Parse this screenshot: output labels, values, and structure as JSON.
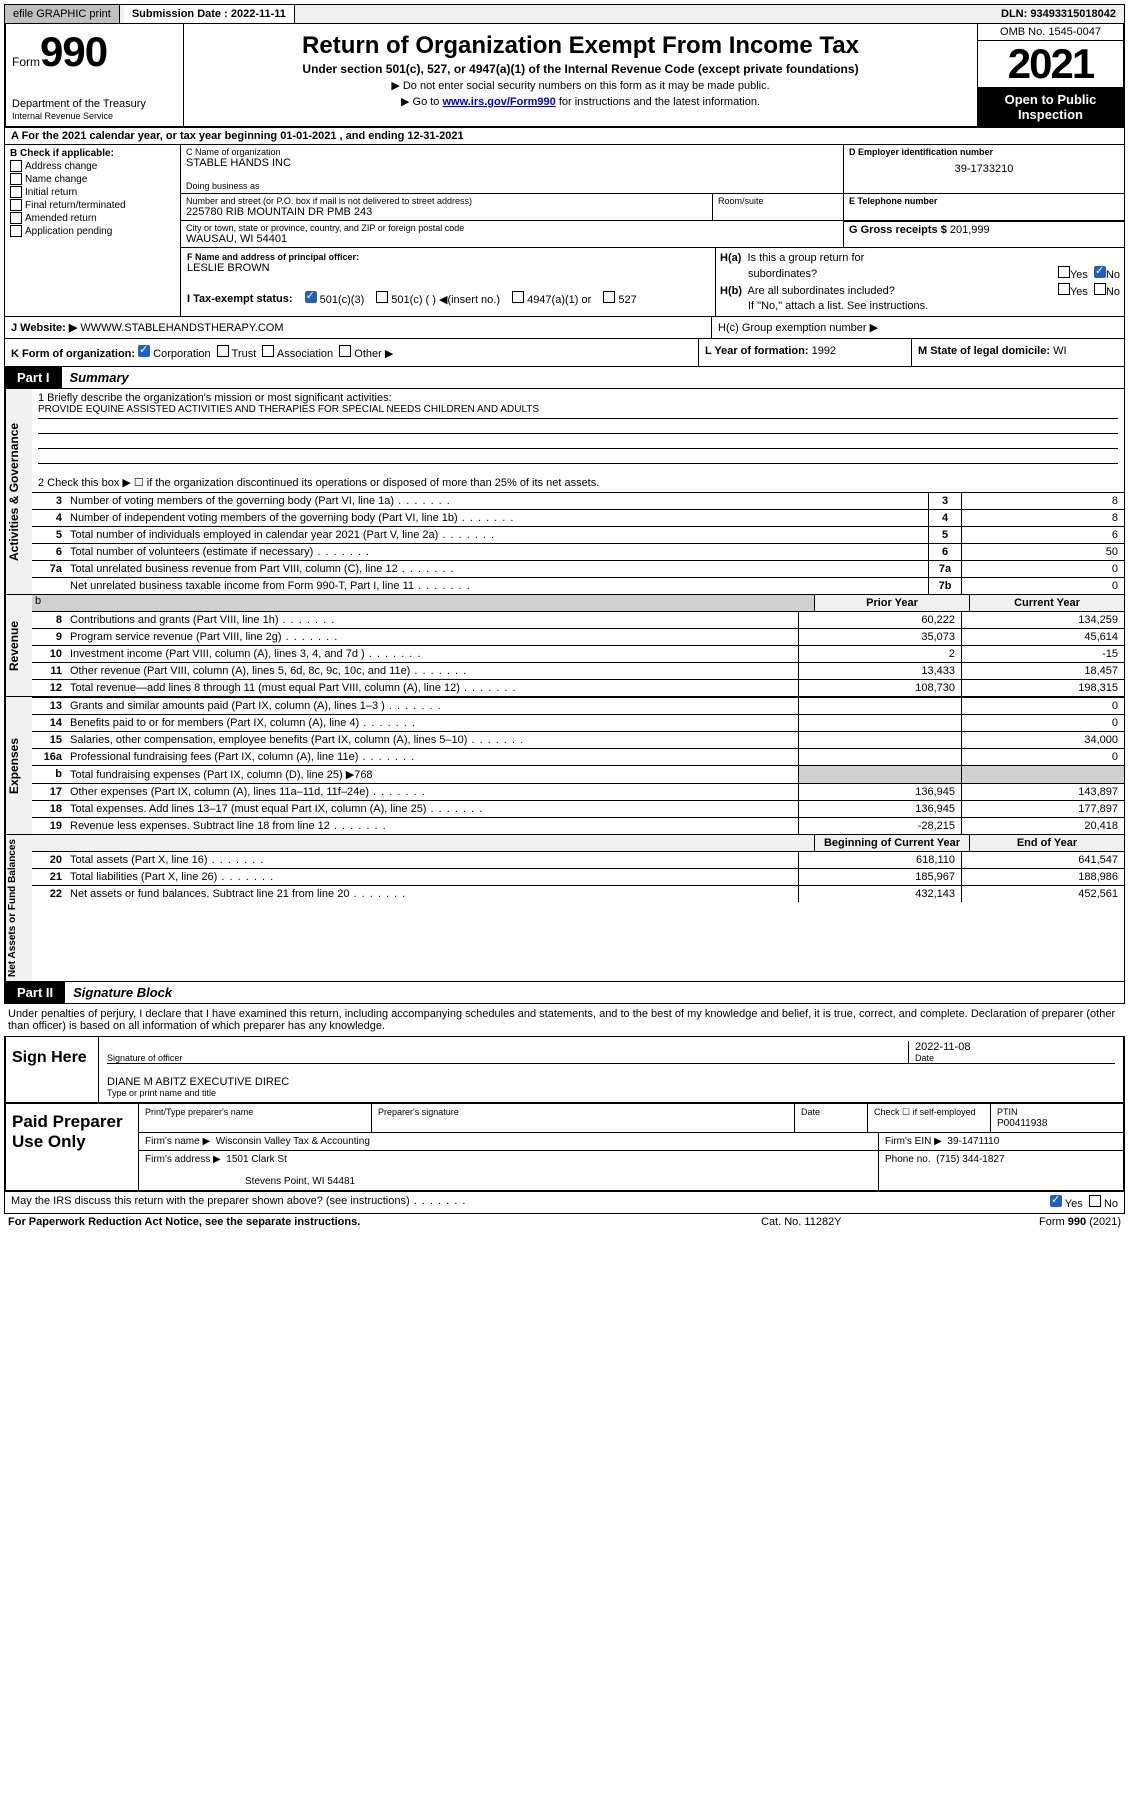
{
  "top": {
    "efile": "efile GRAPHIC print",
    "sub_label": "Submission Date :",
    "sub_date": "2022-11-11",
    "dln": "DLN: 93493315018042"
  },
  "header": {
    "form": "Form",
    "form_num": "990",
    "title": "Return of Organization Exempt From Income Tax",
    "subtitle": "Under section 501(c), 527, or 4947(a)(1) of the Internal Revenue Code (except private foundations)",
    "note1": "▶ Do not enter social security numbers on this form as it may be made public.",
    "note2_pre": "▶ Go to ",
    "note2_link": "www.irs.gov/Form990",
    "note2_post": " for instructions and the latest information.",
    "dept": "Department of the Treasury",
    "irs": "Internal Revenue Service",
    "omb": "OMB No. 1545-0047",
    "year": "2021",
    "open": "Open to Public Inspection"
  },
  "a": {
    "text": "A For the 2021 calendar year, or tax year beginning 01-01-2021   , and ending 12-31-2021"
  },
  "b": {
    "header": "B Check if applicable:",
    "items": [
      "Address change",
      "Name change",
      "Initial return",
      "Final return/terminated",
      "Amended return",
      "Application pending"
    ]
  },
  "c": {
    "name_label": "C Name of organization",
    "name": "STABLE HANDS INC",
    "dba_label": "Doing business as",
    "dba": "",
    "addr_label": "Number and street (or P.O. box if mail is not delivered to street address)",
    "addr": "225780 RIB MOUNTAIN DR PMB 243",
    "room_label": "Room/suite",
    "city_label": "City or town, state or province, country, and ZIP or foreign postal code",
    "city": "WAUSAU, WI  54401"
  },
  "d": {
    "label": "D Employer identification number",
    "value": "39-1733210"
  },
  "e": {
    "label": "E Telephone number",
    "value": ""
  },
  "g": {
    "label": "G Gross receipts $",
    "value": "201,999"
  },
  "f": {
    "label": "F Name and address of principal officer:",
    "name": "LESLIE BROWN"
  },
  "h": {
    "ha_label": "H(a)  Is this a group return for",
    "ha_label2": "subordinates?",
    "hb_label": "H(b)  Are all subordinates included?",
    "hb_note": "If \"No,\" attach a list. See instructions.",
    "hc_label": "H(c)  Group exemption number ▶"
  },
  "i": {
    "label": "I   Tax-exempt status:"
  },
  "j": {
    "label": "J   Website: ▶",
    "value": "WWWW.STABLEHANDSTHERAPY.COM"
  },
  "k": {
    "label": "K Form of organization:"
  },
  "l": {
    "label": "L Year of formation:",
    "value": "1992"
  },
  "m": {
    "label": "M State of legal domicile:",
    "value": "WI"
  },
  "part1": {
    "num": "Part I",
    "title": "Summary"
  },
  "mission": {
    "q1": "1   Briefly describe the organization's mission or most significant activities:",
    "text": "PROVIDE EQUINE ASSISTED ACTIVITIES AND THERAPIES FOR SPECIAL NEEDS CHILDREN AND ADULTS",
    "q2": "2   Check this box ▶ ☐  if the organization discontinued its operations or disposed of more than 25% of its net assets."
  },
  "lines_gov": [
    {
      "n": "3",
      "d": "Number of voting members of the governing body (Part VI, line 1a)",
      "box": "3",
      "v": "8"
    },
    {
      "n": "4",
      "d": "Number of independent voting members of the governing body (Part VI, line 1b)",
      "box": "4",
      "v": "8"
    },
    {
      "n": "5",
      "d": "Total number of individuals employed in calendar year 2021 (Part V, line 2a)",
      "box": "5",
      "v": "6"
    },
    {
      "n": "6",
      "d": "Total number of volunteers (estimate if necessary)",
      "box": "6",
      "v": "50"
    },
    {
      "n": "7a",
      "d": "Total unrelated business revenue from Part VIII, column (C), line 12",
      "box": "7a",
      "v": "0"
    },
    {
      "n": "",
      "d": "Net unrelated business taxable income from Form 990-T, Part I, line 11",
      "box": "7b",
      "v": "0"
    }
  ],
  "col_headers": {
    "prior": "Prior Year",
    "current": "Current Year",
    "boy": "Beginning of Current Year",
    "eoy": "End of Year"
  },
  "lines_rev": [
    {
      "n": "8",
      "d": "Contributions and grants (Part VIII, line 1h)",
      "p": "60,222",
      "c": "134,259"
    },
    {
      "n": "9",
      "d": "Program service revenue (Part VIII, line 2g)",
      "p": "35,073",
      "c": "45,614"
    },
    {
      "n": "10",
      "d": "Investment income (Part VIII, column (A), lines 3, 4, and 7d )",
      "p": "2",
      "c": "-15"
    },
    {
      "n": "11",
      "d": "Other revenue (Part VIII, column (A), lines 5, 6d, 8c, 9c, 10c, and 11e)",
      "p": "13,433",
      "c": "18,457"
    },
    {
      "n": "12",
      "d": "Total revenue—add lines 8 through 11 (must equal Part VIII, column (A), line 12)",
      "p": "108,730",
      "c": "198,315"
    }
  ],
  "lines_exp": [
    {
      "n": "13",
      "d": "Grants and similar amounts paid (Part IX, column (A), lines 1–3 )",
      "p": "",
      "c": "0"
    },
    {
      "n": "14",
      "d": "Benefits paid to or for members (Part IX, column (A), line 4)",
      "p": "",
      "c": "0"
    },
    {
      "n": "15",
      "d": "Salaries, other compensation, employee benefits (Part IX, column (A), lines 5–10)",
      "p": "",
      "c": "34,000"
    },
    {
      "n": "16a",
      "d": "Professional fundraising fees (Part IX, column (A), line 11e)",
      "p": "",
      "c": "0"
    },
    {
      "n": "b",
      "d": "Total fundraising expenses (Part IX, column (D), line 25) ▶768",
      "p": "SHADE",
      "c": "SHADE"
    },
    {
      "n": "17",
      "d": "Other expenses (Part IX, column (A), lines 11a–11d, 11f–24e)",
      "p": "136,945",
      "c": "143,897"
    },
    {
      "n": "18",
      "d": "Total expenses. Add lines 13–17 (must equal Part IX, column (A), line 25)",
      "p": "136,945",
      "c": "177,897"
    },
    {
      "n": "19",
      "d": "Revenue less expenses. Subtract line 18 from line 12",
      "p": "-28,215",
      "c": "20,418"
    }
  ],
  "lines_net": [
    {
      "n": "20",
      "d": "Total assets (Part X, line 16)",
      "p": "618,110",
      "c": "641,547"
    },
    {
      "n": "21",
      "d": "Total liabilities (Part X, line 26)",
      "p": "185,967",
      "c": "188,986"
    },
    {
      "n": "22",
      "d": "Net assets or fund balances. Subtract line 21 from line 20",
      "p": "432,143",
      "c": "452,561"
    }
  ],
  "side_labels": {
    "gov": "Activities & Governance",
    "rev": "Revenue",
    "exp": "Expenses",
    "net": "Net Assets or Fund Balances"
  },
  "part2": {
    "num": "Part II",
    "title": "Signature Block"
  },
  "sig": {
    "declaration": "Under penalties of perjury, I declare that I have examined this return, including accompanying schedules and statements, and to the best of my knowledge and belief, it is true, correct, and complete. Declaration of preparer (other than officer) is based on all information of which preparer has any knowledge.",
    "here": "Sign Here",
    "of_label": "Signature of officer",
    "date_label": "Date",
    "date": "2022-11-08",
    "name": "DIANE M ABITZ  EXECUTIVE DIREC",
    "name_label": "Type or print name and title"
  },
  "paid": {
    "title": "Paid Preparer Use Only",
    "pt_label": "Print/Type preparer's name",
    "ps_label": "Preparer's signature",
    "dt_label": "Date",
    "check_label": "Check ☐ if self-employed",
    "ptin_label": "PTIN",
    "ptin": "P00411938",
    "firm_label": "Firm's name   ▶",
    "firm": "Wisconsin Valley Tax & Accounting",
    "ein_label": "Firm's EIN ▶",
    "ein": "39-1471110",
    "addr_label": "Firm's address ▶",
    "addr1": "1501 Clark St",
    "addr2": "Stevens Point, WI  54481",
    "phone_label": "Phone no.",
    "phone": "(715) 344-1827"
  },
  "discuss": {
    "q": "May the IRS discuss this return with the preparer shown above? (see instructions)",
    "yes": "Yes",
    "no": "No"
  },
  "footer": {
    "pra": "For Paperwork Reduction Act Notice, see the separate instructions.",
    "cat": "Cat. No. 11282Y",
    "form": "Form 990 (2021)"
  },
  "colors": {
    "link": "#0000cc",
    "check": "#2060c0"
  }
}
